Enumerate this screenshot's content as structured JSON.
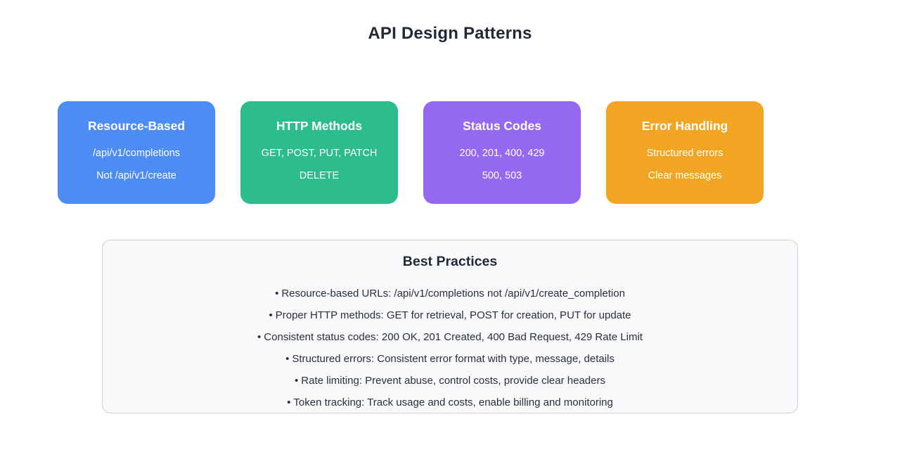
{
  "title": "API Design Patterns",
  "colors": {
    "card_blue": "#4d8cf3",
    "card_green": "#2cbd8b",
    "card_purple": "#9469f0",
    "card_orange": "#f2a522",
    "heading_text": "#1f2937",
    "panel_background": "#f8f9fa",
    "panel_border": "#ccd1d9"
  },
  "cards": [
    {
      "title": "Resource-Based",
      "lines": [
        "/api/v1/completions",
        "Not /api/v1/create"
      ],
      "color": "#4d8cf3"
    },
    {
      "title": "HTTP Methods",
      "lines": [
        "GET, POST, PUT, PATCH",
        "DELETE"
      ],
      "color": "#2cbd8b"
    },
    {
      "title": "Status Codes",
      "lines": [
        "200, 201, 400, 429",
        "500, 503"
      ],
      "color": "#9469f0"
    },
    {
      "title": "Error Handling",
      "lines": [
        "Structured errors",
        "Clear messages"
      ],
      "color": "#f2a522"
    }
  ],
  "best_practices": {
    "title": "Best Practices",
    "bullet": "•",
    "items": [
      "Resource-based URLs: /api/v1/completions not /api/v1/create_completion",
      "Proper HTTP methods: GET for retrieval, POST for creation, PUT for update",
      "Consistent status codes: 200 OK, 201 Created, 400 Bad Request, 429 Rate Limit",
      "Structured errors: Consistent error format with type, message, details",
      "Rate limiting: Prevent abuse, control costs, provide clear headers",
      "Token tracking: Track usage and costs, enable billing and monitoring"
    ]
  }
}
